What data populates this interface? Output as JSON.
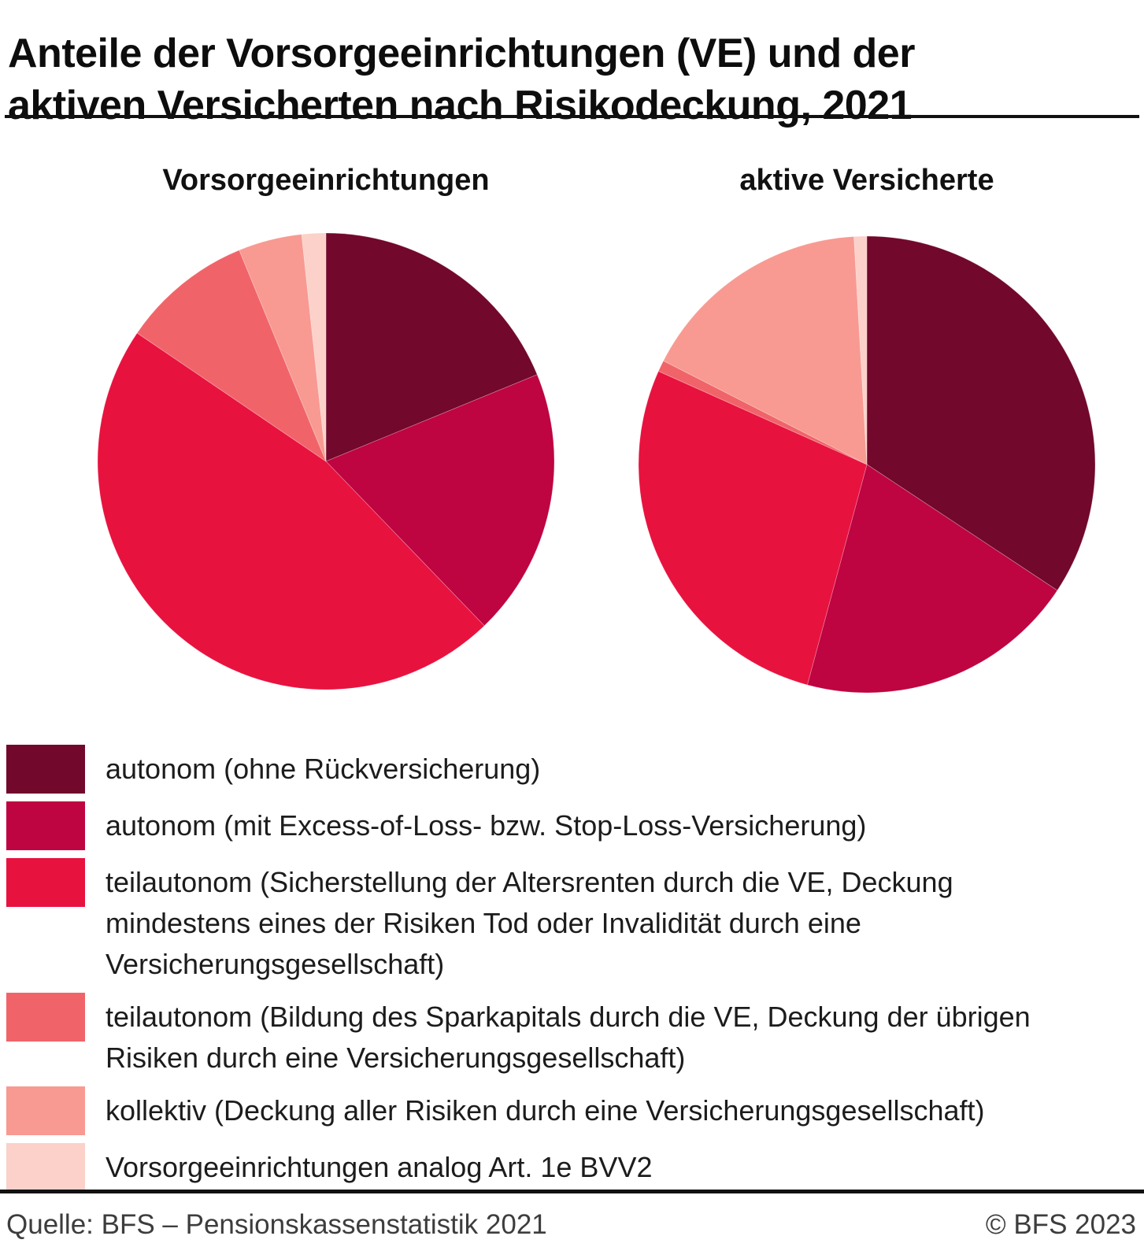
{
  "title": "Anteile der Vorsorgeeinrichtungen (VE) und der aktiven Versicherten nach Risikodeckung, 2021",
  "chart_data": [
    {
      "type": "pie",
      "title": "Vorsorgeeinrichtungen",
      "unit": "percent",
      "start_angle_deg": 0,
      "direction": "clockwise",
      "categories": [
        "autonom (ohne Rückversicherung)",
        "autonom (mit Excess-of-Loss- bzw. Stop-Loss-Versicherung)",
        "teilautonom (Sicherstellung der Altersrenten durch die VE, Deckung mindestens eines der Risiken Tod oder Invalidität durch eine Versicherungsgesellschaft)",
        "teilautonom (Bildung des Sparkapitals durch die VE, Deckung der übrigen Risiken durch eine Versicherungsgesellschaft)",
        "kollektiv (Deckung aller Risiken durch eine Versicherungsgesellschaft)",
        "Vorsorgeeinrichtungen analog Art. 1e BVV2"
      ],
      "values": [
        18.8,
        19.0,
        46.7,
        9.3,
        4.5,
        1.7
      ],
      "colors": [
        "#72082B",
        "#BE0441",
        "#E8123F",
        "#F06469",
        "#F89A92",
        "#FBD1CA"
      ]
    },
    {
      "type": "pie",
      "title": "aktive Versicherte",
      "unit": "percent",
      "start_angle_deg": 0,
      "direction": "clockwise",
      "categories": [
        "autonom (ohne Rückversicherung)",
        "autonom (mit Excess-of-Loss- bzw. Stop-Loss-Versicherung)",
        "teilautonom (Sicherstellung der Altersrenten durch die VE, Deckung mindestens eines der Risiken Tod oder Invalidität durch eine Versicherungsgesellschaft)",
        "teilautonom (Bildung des Sparkapitals durch die VE, Deckung der übrigen Risiken durch eine Versicherungsgesellschaft)",
        "kollektiv (Deckung aller Risiken durch eine Versicherungsgesellschaft)",
        "Vorsorgeeinrichtungen analog Art. 1e BVV2"
      ],
      "values": [
        34.3,
        19.9,
        27.5,
        0.8,
        16.6,
        0.9
      ],
      "colors": [
        "#72082B",
        "#BE0441",
        "#E8123F",
        "#F06469",
        "#F89A92",
        "#FBD1CA"
      ]
    }
  ],
  "legend": {
    "position": "bottom-left",
    "items": [
      {
        "label": "autonom (ohne Rückversicherung)",
        "color": "#72082B"
      },
      {
        "label": "autonom (mit Excess-of-Loss- bzw. Stop-Loss-Versicherung)",
        "color": "#BE0441"
      },
      {
        "label": "teilautonom (Sicherstellung der Altersrenten durch die VE, Deckung mindestens eines der Risiken Tod oder Invalidität durch eine Versicherungsgesellschaft)",
        "color": "#E8123F"
      },
      {
        "label": "teilautonom (Bildung des Sparkapitals durch die VE, Deckung der übrigen Risiken durch eine Versicherungsgesellschaft)",
        "color": "#F06469"
      },
      {
        "label": "kollektiv (Deckung aller Risiken durch eine Versicherungsgesellschaft)",
        "color": "#F89A92"
      },
      {
        "label": "Vorsorgeeinrichtungen analog Art. 1e BVV2",
        "color": "#FBD1CA"
      }
    ]
  },
  "footer": {
    "source": "Quelle: BFS – Pensionskassenstatistik 2021",
    "copyright": "© BFS 2023"
  }
}
